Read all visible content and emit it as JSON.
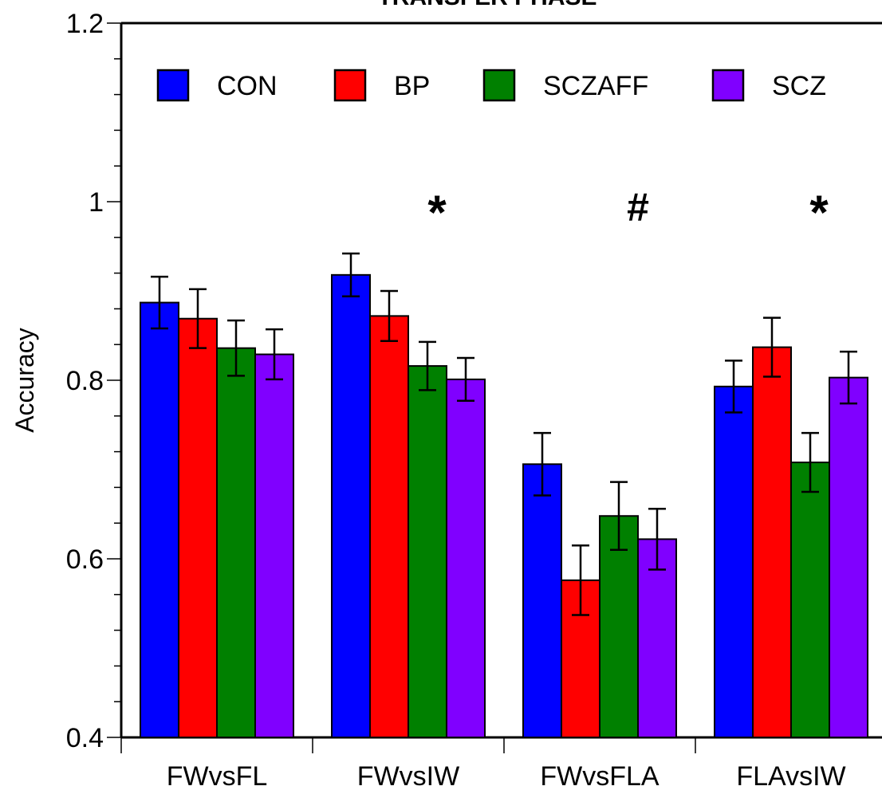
{
  "chart_data": {
    "type": "bar",
    "title": "TRANSFER PHASE",
    "xlabel": "",
    "ylabel": "Accuracy",
    "ylim": [
      0.4,
      1.2
    ],
    "yticks": [
      "0.4",
      "0.6",
      "0.8",
      "1",
      "1.2"
    ],
    "categories": [
      "FWvsFL",
      "FWvsIW",
      "FWvsFLA",
      "FLAvsIW"
    ],
    "series": [
      {
        "name": "CON",
        "color": "#0000ff",
        "values": [
          0.887,
          0.918,
          0.706,
          0.793
        ],
        "errors": [
          0.029,
          0.024,
          0.035,
          0.029
        ]
      },
      {
        "name": "BP",
        "color": "#ff0000",
        "values": [
          0.869,
          0.872,
          0.576,
          0.837
        ],
        "errors": [
          0.033,
          0.028,
          0.039,
          0.033
        ]
      },
      {
        "name": "SCZAFF",
        "color": "#008000",
        "values": [
          0.836,
          0.816,
          0.648,
          0.708
        ],
        "errors": [
          0.031,
          0.027,
          0.038,
          0.033
        ]
      },
      {
        "name": "SCZ",
        "color": "#8000ff",
        "values": [
          0.829,
          0.801,
          0.622,
          0.803
        ],
        "errors": [
          0.028,
          0.024,
          0.034,
          0.029
        ]
      }
    ],
    "annotations": [
      "*",
      "#",
      "*"
    ],
    "legend_position": "top",
    "grid": false
  }
}
